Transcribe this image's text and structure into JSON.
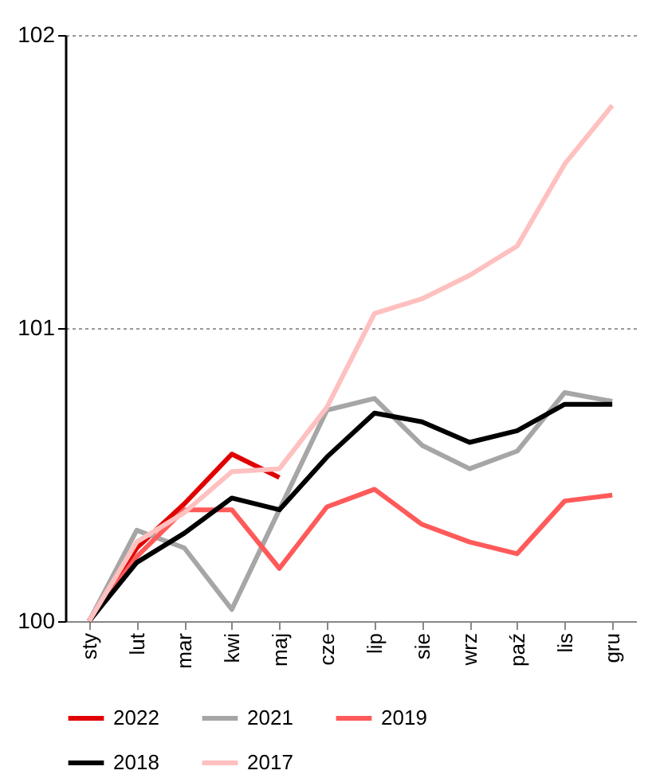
{
  "chart_data": {
    "type": "line",
    "categories": [
      "sty",
      "lut",
      "mar",
      "kwi",
      "maj",
      "cze",
      "lip",
      "sie",
      "wrz",
      "paź",
      "lis",
      "gru"
    ],
    "series": [
      {
        "name": "2022",
        "color": "#e00000",
        "values": [
          100,
          100.25,
          100.4,
          100.57,
          100.49,
          null,
          null,
          null,
          null,
          null,
          null,
          null
        ]
      },
      {
        "name": "2021",
        "color": "#a6a6a6",
        "values": [
          100,
          100.31,
          100.25,
          100.04,
          100.38,
          100.72,
          100.76,
          100.6,
          100.52,
          100.58,
          100.78,
          100.75
        ]
      },
      {
        "name": "2019",
        "color": "#ff5a5a",
        "values": [
          100,
          100.22,
          100.38,
          100.38,
          100.18,
          100.39,
          100.45,
          100.33,
          100.27,
          100.23,
          100.41,
          100.43
        ]
      },
      {
        "name": "2018",
        "color": "#000000",
        "values": [
          100,
          100.2,
          100.3,
          100.42,
          100.38,
          100.56,
          100.71,
          100.68,
          100.61,
          100.65,
          100.74,
          100.74
        ]
      },
      {
        "name": "2017",
        "color": "#ffc0c0",
        "values": [
          100,
          100.27,
          100.37,
          100.51,
          100.52,
          100.73,
          101.05,
          101.1,
          101.18,
          101.28,
          101.56,
          101.76
        ]
      }
    ],
    "ylim": [
      100,
      102
    ],
    "yticks": [
      100,
      101,
      102
    ],
    "grid": "y",
    "legend": "bottom",
    "marker": "none",
    "line_style": "solid"
  }
}
